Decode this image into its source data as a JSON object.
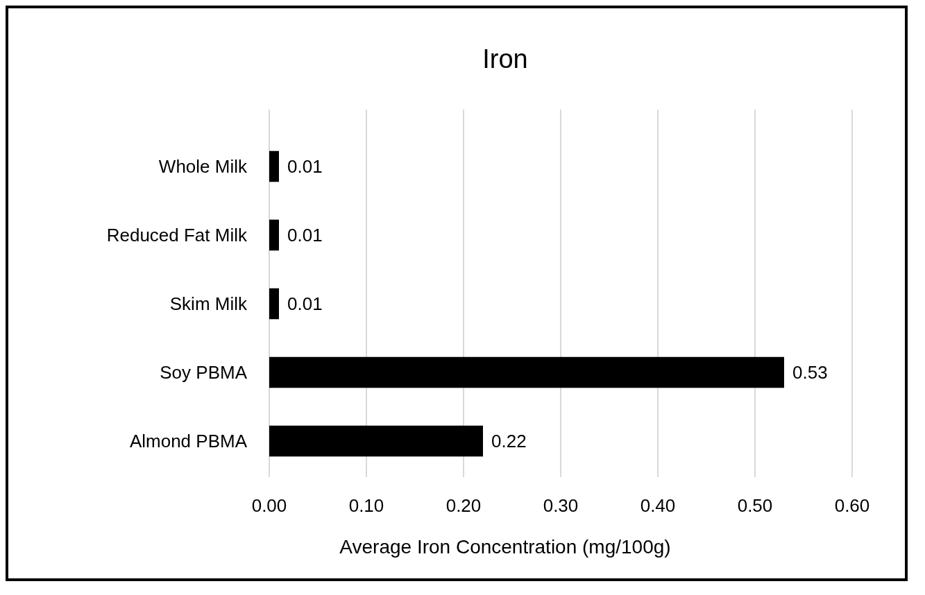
{
  "chart_data": {
    "type": "bar",
    "orientation": "horizontal",
    "title": "Iron",
    "xlabel": "Average Iron Concentration (mg/100g)",
    "categories": [
      "Whole Milk",
      "Reduced Fat Milk",
      "Skim Milk",
      "Soy PBMA",
      "Almond PBMA"
    ],
    "values": [
      0.01,
      0.01,
      0.01,
      0.53,
      0.22
    ],
    "color": "#000000",
    "xlim": [
      0,
      0.6
    ],
    "xticks": [
      {
        "value": 0,
        "label": "0.00"
      },
      {
        "value": 0.1,
        "label": "0.10"
      },
      {
        "value": 0.2,
        "label": "0.20"
      },
      {
        "value": 0.3,
        "label": "0.30"
      },
      {
        "value": 0.4,
        "label": "0.40"
      },
      {
        "value": 0.5,
        "label": "0.50"
      },
      {
        "value": 0.6,
        "label": "0.60"
      }
    ],
    "grid": "x",
    "data_labels": true
  }
}
